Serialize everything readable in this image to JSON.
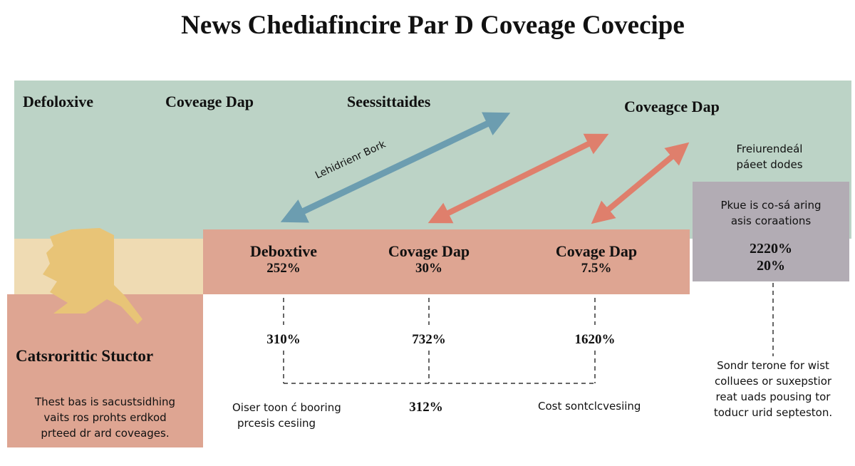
{
  "title": "News Chediafincire Par D Coveage Covecipe",
  "top_headers": [
    "Defoloxive",
    "Coveage Dap",
    "Seessittaides",
    "Coveagce Dap"
  ],
  "arrow_label": "Lehidrienr Bork",
  "right_note": {
    "line1": "Freiurendeál",
    "line2": "páeet dodes"
  },
  "gray_box": {
    "line1": "Pkue is co-sá aring",
    "line2": "asis coraations",
    "value1": "2220%",
    "value2": "20%"
  },
  "columns": [
    {
      "label": "Deboxtive",
      "value": "252%",
      "sub_value": "310%"
    },
    {
      "label": "Covage Dap",
      "value": "30%",
      "sub_value": "732%"
    },
    {
      "label": "Covage Dap",
      "value": "7.5%",
      "sub_value": "1620%"
    }
  ],
  "left_box": {
    "title": "Catsrorittic Stuctor",
    "lines": [
      "Thest bas is sacustsidhing",
      "vaits ros prohts erdkod",
      "prteed dr ard coveages."
    ]
  },
  "bottom": {
    "left_note": [
      "Oiser toon ć booring",
      "prcesis cesiing"
    ],
    "center_value": "312%",
    "right_note": "Cost sontclcvesiing",
    "far_right_note": [
      "Sondr terone for wist",
      "colluees or suxepstior",
      "reat uads pousing tor",
      "toducr urid septeston."
    ]
  },
  "colors": {
    "green": "#bcd3c6",
    "salmon": "#dea592",
    "beige": "#efdbb3",
    "gray": "#b2acb4",
    "blue_arrow": "#6c9db0",
    "red_arrow": "#df7f6c",
    "map": "#e8c477"
  }
}
